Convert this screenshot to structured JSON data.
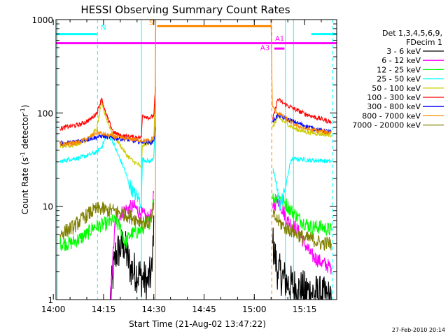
{
  "chart_data": {
    "type": "line",
    "title": "HESSI Observing Summary Count Rates",
    "xlabel": "Start Time (21-Aug-02 13:47:22)",
    "ylabel_main": "Count Rate (s",
    "ylabel_sup1": "-1",
    "ylabel_mid": " detector",
    "ylabel_sup2": "-1",
    "ylabel_end": ")",
    "x_range_minutes": [
      13.8,
      97.6
    ],
    "y_scale": "log",
    "ylim": [
      1,
      1000
    ],
    "x_ticks": [
      {
        "label": "14:00",
        "min": 13
      },
      {
        "label": "14:15",
        "min": 28
      },
      {
        "label": "14:30",
        "min": 43
      },
      {
        "label": "14:45",
        "min": 58
      },
      {
        "label": "15:00",
        "min": 73
      },
      {
        "label": "15:15",
        "min": 88
      }
    ],
    "y_ticks": [
      {
        "label": "1",
        "value": 1
      },
      {
        "label": "10",
        "value": 10
      },
      {
        "label": "100",
        "value": 100
      },
      {
        "label": "1000",
        "value": 1000
      }
    ],
    "legend_header": [
      "Det 1,3,4,5,6,9,",
      "FDecim 1"
    ],
    "series": [
      {
        "name": "3 - 6 keV",
        "color": "#000000",
        "points": [
          [
            30,
            1
          ],
          [
            31.5,
            3
          ],
          [
            34,
            4
          ],
          [
            36,
            2.2
          ],
          [
            39,
            1.8
          ],
          [
            41,
            1.5
          ],
          [
            42.5,
            2
          ],
          [
            43,
            8
          ],
          [
            78.5,
            4
          ],
          [
            80,
            2
          ],
          [
            83,
            1.5
          ],
          [
            86,
            1.3
          ],
          [
            90,
            1.2
          ],
          [
            93,
            1.1
          ],
          [
            96,
            1
          ]
        ]
      },
      {
        "name": "6 - 12 keV",
        "color": "#ff00ff",
        "points": [
          [
            30,
            1
          ],
          [
            31.5,
            7
          ],
          [
            34,
            9
          ],
          [
            37,
            10
          ],
          [
            39,
            8.5
          ],
          [
            41,
            7.5
          ],
          [
            42.5,
            8
          ],
          [
            43,
            14
          ],
          [
            78.5,
            9.5
          ],
          [
            80,
            12
          ],
          [
            83,
            7
          ],
          [
            86,
            5.5
          ],
          [
            88,
            4
          ],
          [
            90,
            3
          ],
          [
            93,
            2.5
          ],
          [
            96,
            2.2
          ]
        ]
      },
      {
        "name": "12 - 25 keV",
        "color": "#00ff00",
        "points": [
          [
            15,
            4
          ],
          [
            18,
            4
          ],
          [
            21,
            4.5
          ],
          [
            23,
            5
          ],
          [
            25,
            6
          ],
          [
            29,
            6.5
          ],
          [
            31,
            7
          ],
          [
            33,
            6
          ],
          [
            34.5,
            4
          ],
          [
            36,
            5
          ],
          [
            39,
            5.5
          ],
          [
            42,
            7
          ],
          [
            43,
            12
          ],
          [
            78.5,
            12
          ],
          [
            80,
            13
          ],
          [
            82,
            11
          ],
          [
            84,
            9
          ],
          [
            87,
            7
          ],
          [
            90,
            6
          ],
          [
            93,
            6
          ],
          [
            96,
            5.5
          ]
        ]
      },
      {
        "name": "25 - 50 keV",
        "color": "#00ffff",
        "points": [
          [
            15,
            30
          ],
          [
            18,
            32
          ],
          [
            21,
            33
          ],
          [
            24,
            36
          ],
          [
            26,
            38
          ],
          [
            27.5,
            44
          ],
          [
            29,
            58
          ],
          [
            30.5,
            52
          ],
          [
            32,
            38
          ],
          [
            34,
            26
          ],
          [
            35.5,
            18
          ],
          [
            37,
            14
          ],
          [
            38.5,
            12
          ],
          [
            39.3,
            11
          ],
          [
            39.6,
            32
          ],
          [
            42,
            30
          ],
          [
            43,
            34
          ],
          [
            43.5,
            100
          ],
          [
            78.5,
            25
          ],
          [
            79.5,
            18
          ],
          [
            80.5,
            10
          ],
          [
            82,
            14
          ],
          [
            84,
            32
          ],
          [
            87,
            32
          ],
          [
            90,
            31
          ],
          [
            93,
            31
          ],
          [
            96,
            30
          ]
        ]
      },
      {
        "name": "50 - 100 keV",
        "color": "#cccc00",
        "points": [
          [
            15,
            44
          ],
          [
            18,
            45
          ],
          [
            21,
            48
          ],
          [
            24,
            55
          ],
          [
            26,
            68
          ],
          [
            27.5,
            130
          ],
          [
            28.5,
            95
          ],
          [
            29.5,
            75
          ],
          [
            31,
            58
          ],
          [
            33,
            45
          ],
          [
            35,
            35
          ],
          [
            37,
            30
          ],
          [
            39,
            27
          ],
          [
            39.3,
            25
          ],
          [
            39.6,
            45
          ],
          [
            42,
            48
          ],
          [
            43,
            55
          ],
          [
            43.5,
            170
          ],
          [
            78.5,
            70
          ],
          [
            80,
            90
          ],
          [
            82,
            80
          ],
          [
            85,
            68
          ],
          [
            88,
            63
          ],
          [
            92,
            60
          ],
          [
            96,
            58
          ]
        ]
      },
      {
        "name": "100 - 300 keV",
        "color": "#ff0000",
        "points": [
          [
            15,
            68
          ],
          [
            18,
            72
          ],
          [
            21,
            75
          ],
          [
            24,
            85
          ],
          [
            26,
            100
          ],
          [
            27.5,
            145
          ],
          [
            28.2,
            110
          ],
          [
            29.5,
            82
          ],
          [
            31,
            62
          ],
          [
            33,
            57
          ],
          [
            35,
            56
          ],
          [
            37,
            55
          ],
          [
            39,
            55
          ],
          [
            39.3,
            55
          ],
          [
            39.6,
            95
          ],
          [
            42,
            88
          ],
          [
            43,
            95
          ],
          [
            43.5,
            190
          ],
          [
            78.5,
            85
          ],
          [
            80,
            140
          ],
          [
            82,
            125
          ],
          [
            85,
            110
          ],
          [
            88,
            98
          ],
          [
            92,
            88
          ],
          [
            96,
            80
          ]
        ]
      },
      {
        "name": "300 - 800 keV",
        "color": "#0000ff",
        "points": [
          [
            15,
            47
          ],
          [
            18,
            48
          ],
          [
            21,
            50
          ],
          [
            24,
            53
          ],
          [
            26,
            55
          ],
          [
            27.5,
            57
          ],
          [
            29,
            55
          ],
          [
            31,
            54
          ],
          [
            33,
            53
          ],
          [
            35,
            52
          ],
          [
            37,
            50
          ],
          [
            39,
            49
          ],
          [
            39.6,
            49
          ],
          [
            42,
            48
          ],
          [
            43,
            50
          ],
          [
            43.5,
            70
          ],
          [
            78.5,
            80
          ],
          [
            80,
            95
          ],
          [
            82,
            88
          ],
          [
            85,
            80
          ],
          [
            88,
            73
          ],
          [
            92,
            66
          ],
          [
            96,
            62
          ]
        ]
      },
      {
        "name": "800 - 7000 keV",
        "color": "#ff8800",
        "points": [
          [
            15,
            46
          ],
          [
            18,
            47
          ],
          [
            21,
            49
          ],
          [
            24,
            55
          ],
          [
            26,
            62
          ],
          [
            27.5,
            60
          ],
          [
            29,
            58
          ],
          [
            31,
            56
          ],
          [
            33,
            54
          ],
          [
            35,
            53
          ],
          [
            37,
            52
          ],
          [
            39,
            51
          ],
          [
            42,
            50
          ],
          [
            43.3,
            58
          ],
          [
            43.6,
            1000
          ],
          [
            78,
            1000
          ],
          [
            78.4,
            115
          ],
          [
            80,
            100
          ],
          [
            82,
            90
          ],
          [
            85,
            75
          ],
          [
            88,
            68
          ],
          [
            92,
            64
          ],
          [
            96,
            62
          ]
        ]
      },
      {
        "name": "7000 - 20000 keV",
        "color": "#808000",
        "points": [
          [
            15,
            5
          ],
          [
            17,
            5.5
          ],
          [
            19,
            6
          ],
          [
            21,
            7
          ],
          [
            23,
            8
          ],
          [
            25,
            9
          ],
          [
            27,
            9.5
          ],
          [
            29,
            9
          ],
          [
            31,
            9
          ],
          [
            33,
            8.5
          ],
          [
            35,
            8
          ],
          [
            37,
            7.5
          ],
          [
            39,
            7
          ],
          [
            41,
            6.5
          ],
          [
            42.5,
            7.5
          ],
          [
            43,
            11
          ],
          [
            78.5,
            8
          ],
          [
            80,
            7
          ],
          [
            82,
            6
          ],
          [
            84,
            5.5
          ],
          [
            86,
            5
          ],
          [
            88,
            4.5
          ],
          [
            90,
            4.5
          ],
          [
            93,
            4
          ],
          [
            96,
            4
          ]
        ]
      }
    ],
    "flag_bars": [
      {
        "color": "#00ffff",
        "y": 700,
        "x_ranges": [
          [
            13.8,
            26
          ],
          [
            90,
            97.6
          ]
        ]
      },
      {
        "color": "#ff8800",
        "y": 850,
        "x_ranges": [
          [
            44,
            78
          ]
        ]
      },
      {
        "color": "#ff00ff",
        "y": 560,
        "x_ranges": [
          [
            13.8,
            97.6
          ]
        ]
      },
      {
        "color": "#ff00ff",
        "y": 490,
        "x_ranges": [
          [
            79,
            82
          ]
        ]
      }
    ],
    "vertical_markers": [
      {
        "color": "#00ffff",
        "x": 14.2,
        "dashed": false
      },
      {
        "color": "#00ffff",
        "x": 26.2,
        "dashed": true
      },
      {
        "color": "#00ffff",
        "x": 39.3,
        "dashed": false
      },
      {
        "color": "#00ffff",
        "x": 82.3,
        "dashed": false
      },
      {
        "color": "#00ffff",
        "x": 84.7,
        "dashed": false
      },
      {
        "color": "#00ffff",
        "x": 96.3,
        "dashed": true
      },
      {
        "color": "#ff8800",
        "x": 43.5,
        "dashed": false
      },
      {
        "color": "#ff8800",
        "x": 78.2,
        "dashed": true
      }
    ],
    "annotations": [
      {
        "text": "N",
        "color": "#00ffff",
        "x": 27.2,
        "y": 780
      },
      {
        "text": "S",
        "color": "#ff8800",
        "x": 41.6,
        "y": 880
      },
      {
        "text": "A3",
        "color": "#ff00ff",
        "x": 74.8,
        "y": 470
      },
      {
        "text": "A1",
        "color": "#ff00ff",
        "x": 79.2,
        "y": 590
      }
    ]
  },
  "footer": "27-Feb-2010 20:14"
}
